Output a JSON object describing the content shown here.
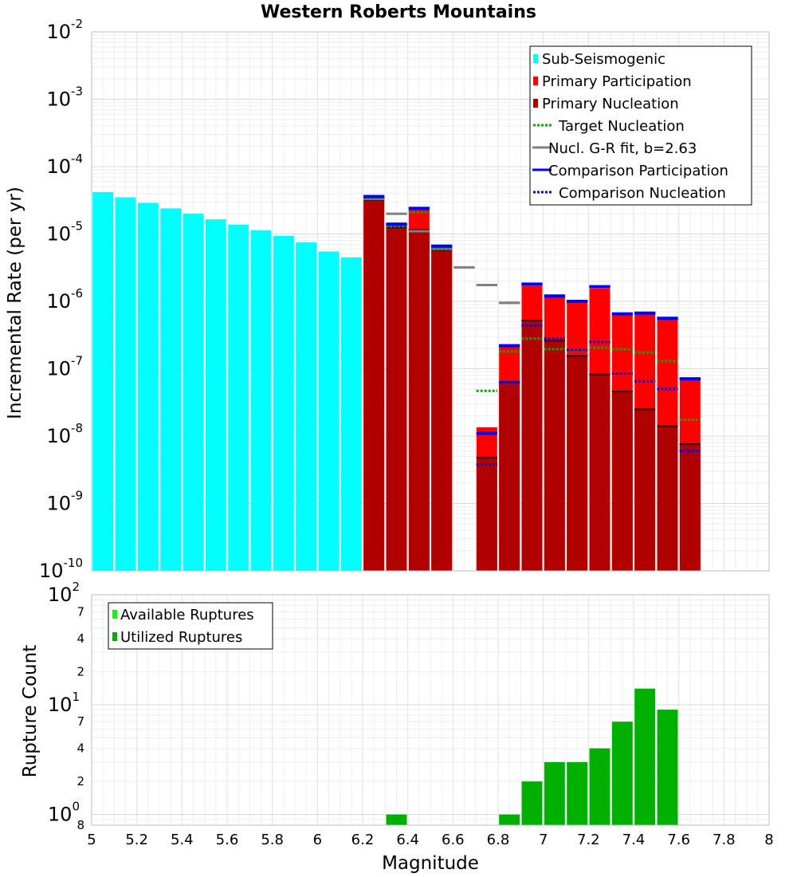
{
  "chart_data": [
    {
      "type": "bar",
      "title": "Western Roberts Mountains",
      "xlabel": "Magnitude",
      "ylabel": "Incremental Rate (per yr)",
      "yscale": "log",
      "ylim": [
        1e-10,
        0.01
      ],
      "xlim": [
        5,
        8
      ],
      "bin_width": 0.1,
      "x_ticks": [
        "5",
        "5.2",
        "5.4",
        "5.6",
        "5.8",
        "6",
        "6.2",
        "6.4",
        "6.6",
        "6.8",
        "7",
        "7.2",
        "7.4",
        "7.6",
        "7.8",
        "8"
      ],
      "y_tick_labels": [
        {
          "base": "10",
          "exp": "-2"
        },
        {
          "base": "10",
          "exp": "-3"
        },
        {
          "base": "10",
          "exp": "-4"
        },
        {
          "base": "10",
          "exp": "-5"
        },
        {
          "base": "10",
          "exp": "-6"
        },
        {
          "base": "10",
          "exp": "-7"
        },
        {
          "base": "10",
          "exp": "-8"
        },
        {
          "base": "10",
          "exp": "-9"
        },
        {
          "base": "10",
          "exp": "-10"
        }
      ],
      "legend": {
        "position": "top-right",
        "entries": [
          {
            "label": "Sub-Seismogenic",
            "color": "#00ffff",
            "style": "bar"
          },
          {
            "label": "Primary Participation",
            "color": "#ff0000",
            "style": "bar"
          },
          {
            "label": "Primary Nucleation",
            "color": "#b00000",
            "style": "bar"
          },
          {
            "label": "Target Nucleation",
            "color": "#00b000",
            "style": "dotted"
          },
          {
            "label": "Nucl. G-R fit, b=2.63",
            "color": "#808080",
            "style": "solid"
          },
          {
            "label": "Comparison Participation",
            "color": "#0000ff",
            "style": "solid"
          },
          {
            "label": "Comparison Nucleation",
            "color": "#0000ff",
            "style": "dotted"
          }
        ]
      },
      "series": [
        {
          "name": "Sub-Seismogenic",
          "color": "#00ffff",
          "x": [
            5.05,
            5.15,
            5.25,
            5.35,
            5.45,
            5.55,
            5.65,
            5.75,
            5.85,
            5.95,
            6.05,
            6.15
          ],
          "values": [
            4.2e-05,
            3.5e-05,
            2.9e-05,
            2.4e-05,
            2e-05,
            1.65e-05,
            1.38e-05,
            1.14e-05,
            9.4e-06,
            7.5e-06,
            5.5e-06,
            4.5e-06
          ]
        },
        {
          "name": "Primary Participation",
          "color": "#ff0000",
          "x": [
            6.25,
            6.35,
            6.45,
            6.55,
            6.75,
            6.85,
            6.95,
            7.05,
            7.15,
            7.25,
            7.35,
            7.45,
            7.55,
            7.65
          ],
          "values": [
            3.5e-05,
            1.4e-05,
            2.3e-05,
            6.5e-06,
            1.35e-08,
            2.1e-07,
            1.7e-06,
            1.15e-06,
            9.5e-07,
            1.55e-06,
            6.2e-07,
            6.4e-07,
            5.4e-07,
            6.9e-08
          ]
        },
        {
          "name": "Primary Nucleation",
          "color": "#b00000",
          "x": [
            6.25,
            6.35,
            6.45,
            6.55,
            6.75,
            6.85,
            6.95,
            7.05,
            7.15,
            7.25,
            7.35,
            7.45,
            7.55,
            7.65
          ],
          "values": [
            3.2e-05,
            1.25e-05,
            1.15e-05,
            5.8e-06,
            4.8e-09,
            6.4e-08,
            5.2e-07,
            2.6e-07,
            1.55e-07,
            8.2e-08,
            4.6e-08,
            2.5e-08,
            1.4e-08,
            7.6e-09
          ]
        },
        {
          "name": "Target Nucleation",
          "color": "#00b000",
          "style": "dotted",
          "x": [
            6.25,
            6.35,
            6.45,
            6.55,
            6.75,
            6.85,
            6.95,
            7.05,
            7.15,
            7.25,
            7.35,
            7.45,
            7.55,
            7.65
          ],
          "values": [
            3.4e-05,
            1.3e-05,
            2.1e-05,
            6e-06,
            4.7e-08,
            1.8e-07,
            2.8e-07,
            1.95e-07,
            1.85e-07,
            2.05e-07,
            1.95e-07,
            1.75e-07,
            1.3e-07,
            1.75e-08
          ]
        },
        {
          "name": "Nucl. G-R fit, b=2.63",
          "color": "#808080",
          "style": "solid",
          "x": [
            6.25,
            6.35,
            6.45,
            6.55,
            6.65,
            6.75,
            6.85
          ],
          "values": [
            3.3e-05,
            2e-05,
            1.1e-05,
            6e-06,
            3.2e-06,
            1.75e-06,
            9.5e-07
          ]
        },
        {
          "name": "Comparison Participation",
          "color": "#0000ff",
          "style": "solid",
          "x": [
            6.25,
            6.35,
            6.45,
            6.55,
            6.75,
            6.85,
            6.95,
            7.05,
            7.15,
            7.25,
            7.35,
            7.45,
            7.55,
            7.65
          ],
          "values": [
            3.6e-05,
            1.4e-05,
            2.4e-05,
            6.6e-06,
            1.1e-08,
            2.2e-07,
            1.8e-06,
            1.2e-06,
            1e-06,
            1.65e-06,
            6.5e-07,
            6.7e-07,
            5.6e-07,
            7.1e-08
          ]
        },
        {
          "name": "Comparison Nucleation",
          "color": "#0000ff",
          "style": "dotted",
          "x": [
            6.75,
            6.85,
            6.95,
            7.05,
            7.15,
            7.25,
            7.35,
            7.45,
            7.55,
            7.65
          ],
          "values": [
            3.8e-09,
            6.3e-08,
            4.4e-07,
            2.8e-07,
            1.9e-07,
            2.5e-07,
            8.5e-08,
            6.5e-08,
            5e-08,
            6e-09
          ]
        }
      ]
    },
    {
      "type": "bar",
      "xlabel": "Magnitude",
      "ylabel": "Rupture Count",
      "yscale": "log",
      "ylim": [
        0.8,
        100
      ],
      "y_tick_labels": [
        {
          "base": "10",
          "exp": "2"
        },
        {
          "base": "10",
          "exp": "1"
        },
        {
          "base": "10",
          "exp": "0"
        }
      ],
      "y_minor_labels": [
        "7",
        "4",
        "2",
        "7",
        "4",
        "2",
        "8"
      ],
      "legend": {
        "position": "top-left",
        "entries": [
          {
            "label": "Available Ruptures",
            "color": "#00ff00"
          },
          {
            "label": "Utilized Ruptures",
            "color": "#00b000"
          }
        ]
      },
      "series": [
        {
          "name": "Utilized Ruptures",
          "color": "#00b000",
          "x": [
            6.35,
            6.85,
            6.95,
            7.05,
            7.15,
            7.25,
            7.35,
            7.45,
            7.55
          ],
          "values": [
            1,
            1,
            2,
            3,
            3,
            4,
            7,
            14,
            9
          ]
        }
      ]
    }
  ]
}
